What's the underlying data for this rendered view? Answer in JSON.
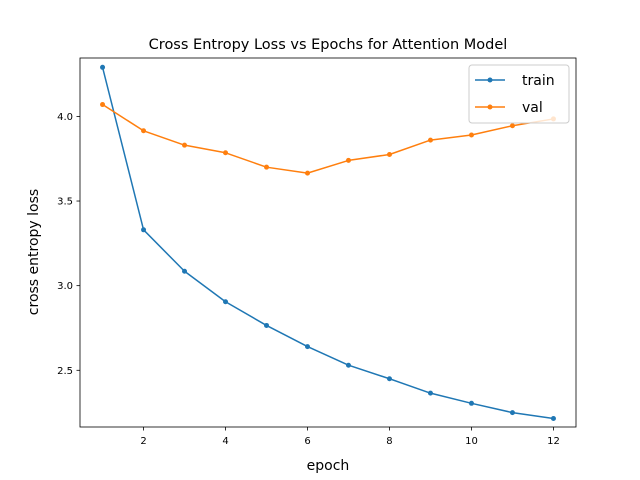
{
  "chart_data": {
    "type": "line",
    "title": "Cross Entropy Loss vs Epochs for Attention Model",
    "xlabel": "epoch",
    "ylabel": "cross entropy loss",
    "x": [
      1,
      2,
      3,
      4,
      5,
      6,
      7,
      8,
      9,
      10,
      11,
      12
    ],
    "xticks": [
      "2",
      "4",
      "6",
      "8",
      "10",
      "12"
    ],
    "yticks": [
      "2.5",
      "3.0",
      "3.5",
      "4.0"
    ],
    "xlim": [
      0.45,
      12.55
    ],
    "ylim": [
      2.165,
      4.345
    ],
    "grid": false,
    "legend_position": "upper right",
    "series": [
      {
        "name": "train",
        "color": "#1f77b4",
        "values": [
          4.29,
          3.33,
          3.085,
          2.905,
          2.765,
          2.64,
          2.53,
          2.45,
          2.365,
          2.305,
          2.25,
          2.215
        ]
      },
      {
        "name": "val",
        "color": "#ff7f0e",
        "values": [
          4.07,
          3.915,
          3.83,
          3.785,
          3.7,
          3.665,
          3.74,
          3.775,
          3.86,
          3.89,
          3.945,
          3.985
        ]
      }
    ]
  }
}
